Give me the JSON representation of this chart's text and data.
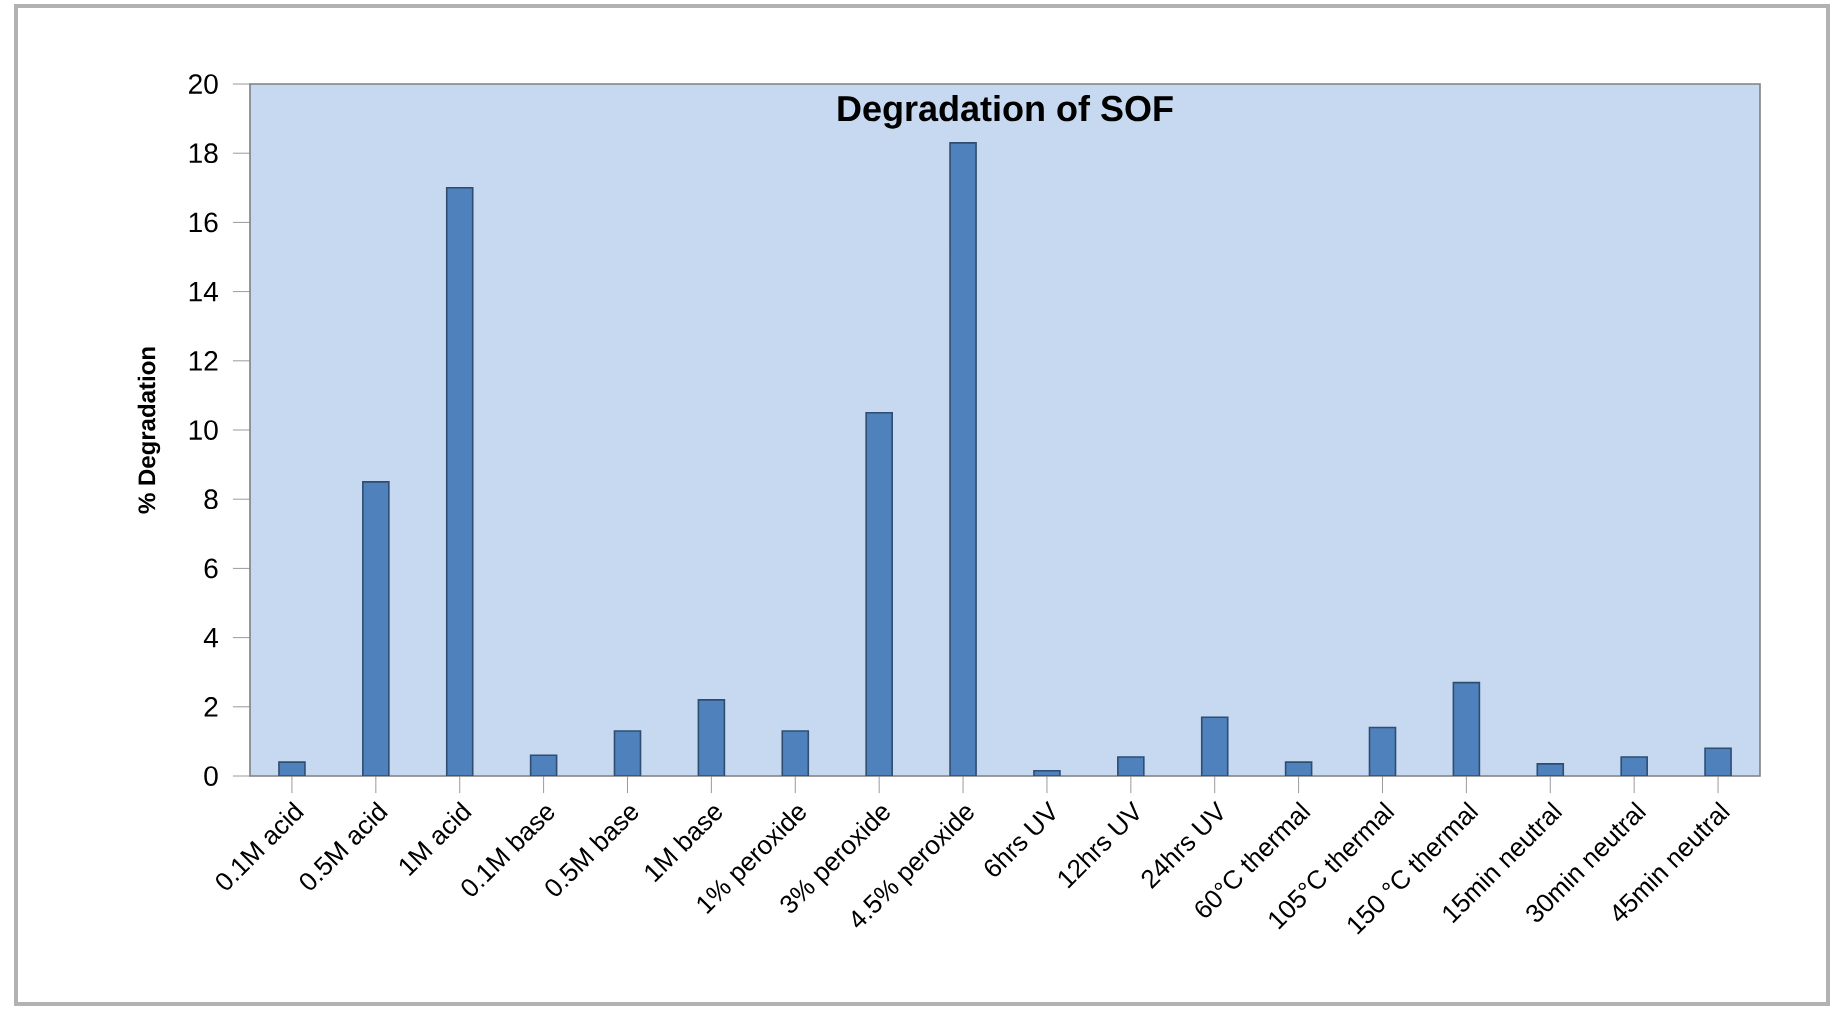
{
  "chart_data": {
    "type": "bar",
    "title": "Degradation of SOF",
    "ylabel": "% Degradation",
    "categories": [
      "0.1M acid",
      "0.5M acid",
      "1M acid",
      "0.1M base",
      "0.5M base",
      "1M base",
      "1% peroxide",
      "3% peroxide",
      "4.5% peroxide",
      "6hrs UV",
      "12hrs UV",
      "24hrs UV",
      "60°C thermal",
      "105°C thermal",
      "150 °C thermal",
      "15min neutral",
      "30min neutral",
      "45min neutral"
    ],
    "values": [
      0.4,
      8.5,
      17.0,
      0.6,
      1.3,
      2.2,
      1.3,
      10.5,
      18.3,
      0.15,
      0.55,
      1.7,
      0.4,
      1.4,
      2.7,
      0.35,
      0.55,
      0.8
    ],
    "color": "#4f81bd",
    "ylim": [
      0,
      20
    ],
    "yticks": [
      0,
      2,
      4,
      6,
      8,
      10,
      12,
      14,
      16,
      18,
      20
    ],
    "grid": false
  }
}
